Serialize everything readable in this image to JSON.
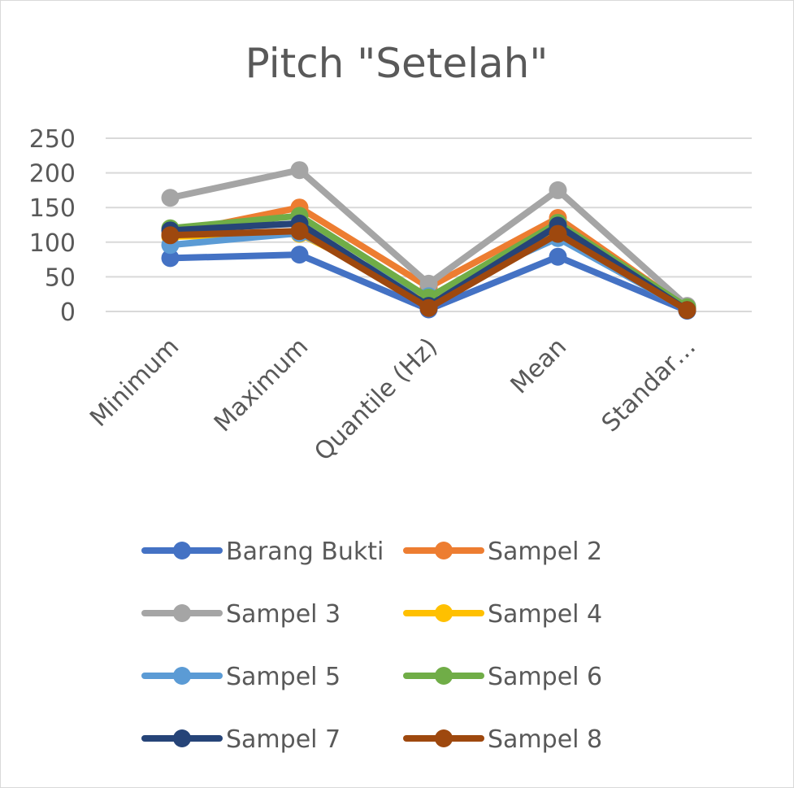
{
  "chart_data": {
    "type": "line",
    "title": "Pitch \"Setelah\"",
    "xlabel": "",
    "ylabel": "",
    "categories": [
      "Minimum",
      "Maximum",
      "Quantile (Hz)",
      "Mean",
      "Standar…"
    ],
    "ylim": [
      0,
      250
    ],
    "yticks": [
      "0",
      "50",
      "100",
      "150",
      "200",
      "250"
    ],
    "grid": true,
    "legend_position": "bottom",
    "series": [
      {
        "name": "Barang Bukti",
        "color": "#4472C4",
        "values": [
          77,
          82,
          3,
          79,
          1
        ]
      },
      {
        "name": "Sampel 2",
        "color": "#ED7D31",
        "values": [
          112,
          150,
          35,
          135,
          5
        ]
      },
      {
        "name": "Sampel 3",
        "color": "#A5A5A5",
        "values": [
          164,
          204,
          40,
          175,
          8
        ]
      },
      {
        "name": "Sampel 4",
        "color": "#FFC000",
        "values": [
          108,
          112,
          20,
          120,
          4
        ]
      },
      {
        "name": "Sampel 5",
        "color": "#5B9BD5",
        "values": [
          96,
          113,
          22,
          106,
          3
        ]
      },
      {
        "name": "Sampel 6",
        "color": "#70AD47",
        "values": [
          120,
          138,
          20,
          128,
          6
        ]
      },
      {
        "name": "Sampel 7",
        "color": "#264478",
        "values": [
          117,
          127,
          8,
          124,
          2
        ]
      },
      {
        "name": "Sampel 8",
        "color": "#9E480E",
        "values": [
          110,
          116,
          5,
          112,
          2
        ]
      }
    ]
  }
}
